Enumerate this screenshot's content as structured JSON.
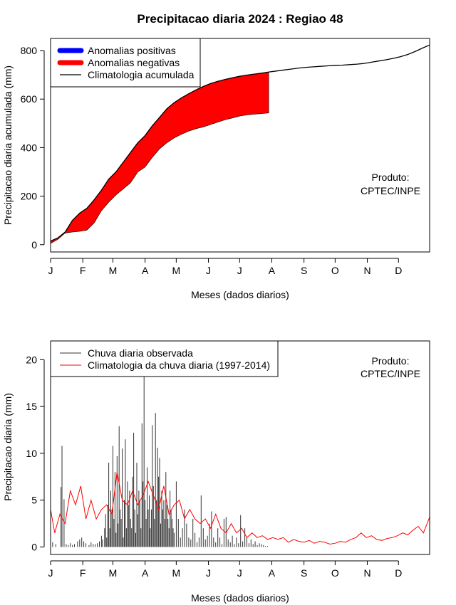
{
  "chart_data": [
    {
      "type": "area",
      "title": "Precipitacao diaria 2024 : Regiao 48",
      "xlabel": "Meses (dados diarios)",
      "ylabel": "Precipitacao diaria acumulada (mm)",
      "x_unit": "day of year",
      "xlim": [
        1,
        366
      ],
      "ylim": [
        -30,
        850
      ],
      "yticks": [
        0,
        200,
        400,
        600,
        800
      ],
      "month_ticks": [
        {
          "label": "J",
          "day": 1
        },
        {
          "label": "F",
          "day": 32
        },
        {
          "label": "M",
          "day": 61
        },
        {
          "label": "A",
          "day": 92
        },
        {
          "label": "M",
          "day": 122
        },
        {
          "label": "J",
          "day": 153
        },
        {
          "label": "J",
          "day": 183
        },
        {
          "label": "A",
          "day": 214
        },
        {
          "label": "S",
          "day": 245
        },
        {
          "label": "O",
          "day": 275
        },
        {
          "label": "N",
          "day": 306
        },
        {
          "label": "D",
          "day": 336
        }
      ],
      "legend": {
        "position": "top-left",
        "entries": [
          {
            "label": "Anomalias positivas",
            "color": "#0000ff",
            "style": "thick-line"
          },
          {
            "label": "Anomalias negativas",
            "color": "#ff0000",
            "style": "thick-line"
          },
          {
            "label": "Climatologia acumulada",
            "color": "#000000",
            "style": "line"
          }
        ]
      },
      "annotation": {
        "line1": "Produto:",
        "line2": "CPTEC/INPE"
      },
      "series": [
        {
          "name": "Climatologia acumulada",
          "color": "#000000",
          "x": [
            1,
            8,
            15,
            22,
            29,
            36,
            43,
            50,
            57,
            64,
            71,
            78,
            85,
            92,
            99,
            106,
            113,
            120,
            127,
            134,
            141,
            148,
            155,
            162,
            169,
            176,
            183,
            190,
            197,
            204,
            212,
            219,
            226,
            233,
            240,
            247,
            254,
            261,
            268,
            275,
            282,
            289,
            296,
            303,
            310,
            317,
            324,
            331,
            338,
            345,
            352,
            359,
            366
          ],
          "y": [
            15,
            28,
            52,
            100,
            130,
            150,
            185,
            225,
            270,
            300,
            340,
            380,
            420,
            450,
            490,
            525,
            560,
            585,
            605,
            622,
            638,
            652,
            664,
            673,
            681,
            688,
            694,
            699,
            703,
            707,
            712,
            716,
            720,
            724,
            728,
            731,
            733,
            735,
            737,
            739,
            740,
            742,
            744,
            747,
            752,
            757,
            762,
            768,
            775,
            784,
            796,
            810,
            823
          ]
        },
        {
          "name": "Observado acumulado",
          "color": "#000000",
          "x": [
            1,
            8,
            15,
            22,
            29,
            36,
            43,
            50,
            57,
            64,
            71,
            78,
            85,
            92,
            99,
            106,
            113,
            120,
            127,
            134,
            141,
            148,
            155,
            162,
            169,
            176,
            183,
            190,
            197,
            204,
            211
          ],
          "y": [
            5,
            22,
            48,
            52,
            55,
            60,
            90,
            140,
            175,
            205,
            230,
            255,
            300,
            320,
            360,
            395,
            420,
            440,
            455,
            468,
            478,
            485,
            495,
            505,
            515,
            522,
            530,
            535,
            538,
            540,
            543
          ]
        }
      ]
    },
    {
      "type": "bar",
      "title": "",
      "xlabel": "Meses (dados diarios)",
      "ylabel": "Precipitacao diaria (mm)",
      "x_unit": "day of year",
      "xlim": [
        1,
        366
      ],
      "ylim": [
        -0.8,
        22
      ],
      "yticks": [
        0,
        5,
        10,
        15,
        20
      ],
      "legend": {
        "position": "top-left",
        "entries": [
          {
            "label": "Chuva diaria observada",
            "color": "#333333",
            "style": "line"
          },
          {
            "label": "Climatologia da chuva diaria (1997-2014)",
            "color": "#ff0000",
            "style": "line"
          }
        ]
      },
      "annotation": {
        "line1": "Produto:",
        "line2": "CPTEC/INPE"
      },
      "series": [
        {
          "name": "Chuva diaria observada",
          "color": "#333333",
          "x": [
            1,
            3,
            6,
            11,
            12,
            14,
            16,
            18,
            20,
            22,
            24,
            27,
            29,
            31,
            33,
            35,
            38,
            40,
            42,
            44,
            46,
            48,
            50,
            51,
            53,
            54,
            55,
            56,
            57,
            58,
            59,
            60,
            61,
            62,
            63,
            64,
            65,
            66,
            67,
            68,
            69,
            70,
            71,
            72,
            73,
            74,
            75,
            76,
            77,
            78,
            79,
            80,
            81,
            82,
            83,
            84,
            85,
            86,
            87,
            88,
            89,
            90,
            91,
            92,
            93,
            94,
            95,
            96,
            97,
            98,
            99,
            100,
            101,
            102,
            103,
            104,
            105,
            106,
            107,
            108,
            109,
            110,
            111,
            112,
            113,
            114,
            115,
            116,
            117,
            118,
            119,
            120,
            122,
            124,
            126,
            128,
            130,
            132,
            134,
            136,
            138,
            140,
            142,
            144,
            146,
            148,
            150,
            152,
            154,
            156,
            158,
            160,
            162,
            164,
            166,
            168,
            170,
            172,
            174,
            176,
            178,
            180,
            182,
            184,
            186,
            188,
            190,
            192,
            194,
            196,
            198,
            200,
            202,
            204,
            206,
            208,
            210
          ],
          "y": [
            18.2,
            0.5,
            0.3,
            6.4,
            10.8,
            5.1,
            0.3,
            0.2,
            0.4,
            0.2,
            0.3,
            0.6,
            0.8,
            1.0,
            0.6,
            0.4,
            0.2,
            0.5,
            0.3,
            0.3,
            0.4,
            0.6,
            1.2,
            0.8,
            2.0,
            3.5,
            1.0,
            4.5,
            9.0,
            2.0,
            6.0,
            4.0,
            10.8,
            3.0,
            8.0,
            1.5,
            9.7,
            2.5,
            12.9,
            4.0,
            3.0,
            10.5,
            1.0,
            5.0,
            11.5,
            2.0,
            7.0,
            4.5,
            6.0,
            3.0,
            2.0,
            7.5,
            12.2,
            4.0,
            1.5,
            9.0,
            3.5,
            6.0,
            5.0,
            2.0,
            13.2,
            7.0,
            18.2,
            5.0,
            3.0,
            8.5,
            4.0,
            5.5,
            2.0,
            4.0,
            13.0,
            6.5,
            3.0,
            14.3,
            5.0,
            10.6,
            7.5,
            9.5,
            2.5,
            6.0,
            4.0,
            5.0,
            3.0,
            8.0,
            4.5,
            3.0,
            2.0,
            6.0,
            4.0,
            3.0,
            2.0,
            1.5,
            7.0,
            3.0,
            1.0,
            2.0,
            4.0,
            2.5,
            1.0,
            0.8,
            3.0,
            1.5,
            0.5,
            1.0,
            5.5,
            2.0,
            0.8,
            1.2,
            2.5,
            3.8,
            1.0,
            0.5,
            2.0,
            1.0,
            0.3,
            3.0,
            3.2,
            0.8,
            0.5,
            1.2,
            0.3,
            1.0,
            0.4,
            3.4,
            0.6,
            2.0,
            1.0,
            0.4,
            0.8,
            0.3,
            0.6,
            0.2,
            0.4,
            0.3,
            0.2,
            0.1,
            0.1
          ]
        },
        {
          "name": "Climatologia da chuva diaria (1997-2014)",
          "color": "#ff0000",
          "x": [
            1,
            5,
            10,
            15,
            20,
            25,
            30,
            35,
            40,
            45,
            50,
            55,
            60,
            65,
            70,
            75,
            80,
            85,
            90,
            95,
            100,
            105,
            110,
            115,
            120,
            125,
            130,
            135,
            140,
            145,
            150,
            155,
            160,
            165,
            170,
            175,
            180,
            185,
            190,
            195,
            200,
            205,
            210,
            215,
            220,
            225,
            230,
            235,
            240,
            245,
            250,
            255,
            260,
            265,
            270,
            275,
            280,
            285,
            290,
            295,
            300,
            305,
            310,
            315,
            320,
            325,
            330,
            335,
            340,
            345,
            350,
            355,
            360,
            366
          ],
          "y": [
            4.0,
            1.5,
            3.5,
            2.5,
            6.0,
            4.5,
            6.5,
            3.0,
            5.0,
            3.0,
            4.0,
            4.5,
            3.5,
            8.0,
            5.0,
            4.5,
            6.0,
            4.5,
            5.5,
            7.0,
            5.5,
            4.0,
            6.5,
            3.5,
            4.5,
            5.0,
            3.0,
            4.0,
            3.0,
            2.5,
            3.0,
            2.0,
            3.5,
            2.0,
            1.5,
            2.5,
            1.5,
            2.0,
            1.0,
            1.5,
            1.0,
            1.2,
            0.8,
            1.0,
            0.8,
            1.0,
            0.5,
            0.8,
            0.6,
            0.5,
            0.7,
            0.4,
            0.6,
            0.5,
            0.3,
            0.4,
            0.6,
            0.5,
            0.8,
            1.0,
            1.5,
            1.0,
            1.2,
            0.8,
            0.7,
            0.9,
            1.0,
            1.2,
            1.5,
            1.3,
            1.8,
            2.2,
            1.5,
            3.2
          ]
        }
      ]
    }
  ]
}
